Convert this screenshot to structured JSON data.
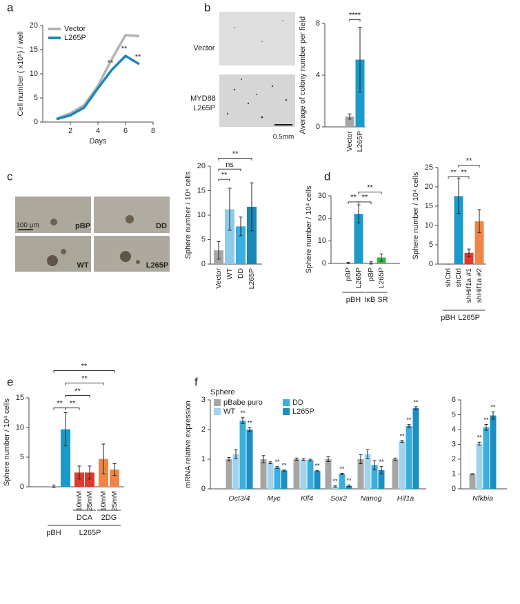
{
  "chart_data": [
    {
      "panel": "a",
      "type": "line",
      "ylabel": "Cell number ( x10⁵) / well",
      "xlabel": "Days",
      "x": [
        1,
        2,
        3,
        4,
        5,
        6,
        7
      ],
      "series": [
        {
          "name": "Vector",
          "color": "#b3b3b3",
          "values": [
            0.7,
            1.8,
            3.5,
            7.5,
            13,
            18,
            17.8
          ]
        },
        {
          "name": "L265P",
          "color": "#1a87b8",
          "values": [
            0.6,
            1.4,
            3.0,
            7.0,
            10.8,
            13.7,
            12.0
          ],
          "annotations": [
            null,
            null,
            null,
            null,
            "**",
            "**",
            "**"
          ]
        }
      ],
      "xlim": [
        0,
        8
      ],
      "xticks": [
        2,
        4,
        6,
        8
      ],
      "ylim": [
        0,
        20
      ],
      "yticks": [
        0,
        5,
        10,
        15,
        20
      ]
    },
    {
      "panel": "b",
      "type": "bar",
      "images": [
        "Vector",
        "MYD88 L265P"
      ],
      "scale_label": "0.5mm",
      "ylabel": "Average of colony number per field",
      "categories": [
        "Vector",
        "L265P"
      ],
      "values": [
        0.8,
        5.2
      ],
      "errors": [
        0.2,
        2.5
      ],
      "colors": [
        "#a6a6a6",
        "#1a9bc9"
      ],
      "ylim": [
        0,
        8
      ],
      "yticks": [
        0,
        4,
        8
      ],
      "annotations": [
        "****"
      ]
    },
    {
      "panel": "c",
      "type": "bar",
      "images": [
        "pBP",
        "DD",
        "WT",
        "L265P"
      ],
      "scale_label": "100 μm",
      "ylabel": "Sphere number / 10⁴ cells",
      "categories": [
        "Vector",
        "WT",
        "DD",
        "L265P"
      ],
      "values": [
        2.8,
        11.2,
        7.7,
        11.7
      ],
      "errors": [
        1.8,
        4.3,
        1.9,
        4.9
      ],
      "colors": [
        "#a6a6a6",
        "#8ccbea",
        "#3aaede",
        "#1a87b5"
      ],
      "ylim": [
        0,
        20
      ],
      "yticks": [
        0,
        5,
        10,
        15,
        20
      ],
      "annotations": [
        "**",
        "ns",
        "**"
      ]
    },
    {
      "panel": "d",
      "type": "bar",
      "ylabel": "Sphere number / 10⁴ cells",
      "categories": [
        "pBP",
        "L265P",
        "pBP",
        "L265P"
      ],
      "values": [
        0.2,
        22,
        0.2,
        2.6
      ],
      "errors": [
        0.3,
        4,
        0.5,
        1.6
      ],
      "colors": [
        "#a6a6a6",
        "#1a9bc9",
        "#a6a6a6",
        "#3fb24a"
      ],
      "ylim": [
        0,
        30
      ],
      "yticks": [
        0,
        10,
        20,
        30
      ],
      "annotations": [
        "**",
        "**",
        "**"
      ],
      "groups": [
        "pBH",
        "IκB SR"
      ]
    },
    {
      "type": "bar",
      "ylabel": "Sphere number / 10⁴ cells",
      "categories": [
        "shCtrl",
        "shCtrl",
        "shHif1a #1",
        "shHif1a #2"
      ],
      "values": [
        0,
        17.6,
        2.9,
        11.1
      ],
      "errors": [
        0,
        4.5,
        1,
        3
      ],
      "colors": [
        "#a6a6a6",
        "#1a9bc9",
        "#e03a2e",
        "#ef8547"
      ],
      "ylim": [
        0,
        25
      ],
      "yticks": [
        0,
        5,
        10,
        15,
        20,
        25
      ],
      "annotations": [
        "**",
        "**",
        "**"
      ],
      "groups": [
        "pBH",
        "L265P"
      ]
    },
    {
      "panel": "e",
      "type": "bar",
      "ylabel": "Sphere number / 10⁴ cells",
      "categories": [
        null,
        null,
        "10mM",
        "25mM",
        "10mM",
        "25mM"
      ],
      "values": [
        0.1,
        9.7,
        2.4,
        2.4,
        4.7,
        2.9
      ],
      "errors": [
        0.2,
        2.8,
        1.1,
        1.1,
        2.5,
        1.0
      ],
      "colors": [
        "#a6a6a6",
        "#1a9bc9",
        "#e03a2e",
        "#e03a2e",
        "#ef8547",
        "#ef8547"
      ],
      "ylim": [
        0,
        15
      ],
      "yticks": [
        0,
        5,
        10,
        15
      ],
      "annotations": [
        "**",
        "**",
        "**",
        "**",
        "**"
      ],
      "groups": [
        "pBH",
        "L265P",
        "DCA",
        "2DG"
      ]
    },
    {
      "panel": "f",
      "type": "bar",
      "legend_title": "Sphere",
      "ylabel": "mRNA relative expression",
      "categories": [
        "Oct3/4",
        "Myc",
        "Klf4",
        "Sox2",
        "Nanog",
        "Hif1a"
      ],
      "series": [
        {
          "name": "pBabe puro",
          "color": "#a6a6a6",
          "values": [
            1,
            1,
            1,
            1,
            1,
            1
          ],
          "errors": [
            0.06,
            0.12,
            0.04,
            0.08,
            0.15,
            0.04
          ]
        },
        {
          "name": "WT",
          "color": "#9fd3ee",
          "values": [
            1.17,
            0.88,
            0.99,
            0.08,
            1.17,
            1.6
          ],
          "errors": [
            0.15,
            0.03,
            0.03,
            0.02,
            0.15,
            0.03
          ],
          "annotations": [
            null,
            null,
            null,
            "**",
            null,
            "**"
          ]
        },
        {
          "name": "DD",
          "color": "#3aaede",
          "values": [
            2.3,
            0.72,
            0.97,
            0.5,
            0.8,
            2.12
          ],
          "errors": [
            0.1,
            0.03,
            0.03,
            0.02,
            0.15,
            0.05
          ],
          "annotations": [
            "**",
            "**",
            null,
            "**",
            null,
            "**"
          ]
        },
        {
          "name": "L265P",
          "color": "#1c8fc2",
          "values": [
            2.0,
            0.62,
            0.6,
            0.1,
            0.63,
            2.72
          ],
          "errors": [
            0.07,
            0.02,
            0.02,
            0.03,
            0.12,
            0.05
          ],
          "annotations": [
            "**",
            "**",
            "**",
            "**",
            "**",
            "**"
          ]
        }
      ],
      "ylim": [
        0,
        3
      ],
      "yticks": [
        0,
        1,
        2,
        3
      ]
    },
    {
      "type": "bar",
      "categories": [
        "Nfkbia"
      ],
      "series": [
        {
          "name": "pBabe puro",
          "color": "#a6a6a6",
          "values": [
            1
          ],
          "errors": [
            0.02
          ]
        },
        {
          "name": "WT",
          "color": "#9fd3ee",
          "values": [
            3.05
          ],
          "errors": [
            0.1
          ],
          "annotations": [
            "**"
          ]
        },
        {
          "name": "DD",
          "color": "#3aaede",
          "values": [
            4.15
          ],
          "errors": [
            0.2
          ],
          "annotations": [
            "**"
          ]
        },
        {
          "name": "L265P",
          "color": "#1c8fc2",
          "values": [
            4.95
          ],
          "errors": [
            0.25
          ],
          "annotations": [
            "**"
          ]
        }
      ],
      "ylim": [
        0,
        6
      ],
      "yticks": [
        0,
        1,
        2,
        3,
        4,
        5,
        6
      ]
    }
  ]
}
